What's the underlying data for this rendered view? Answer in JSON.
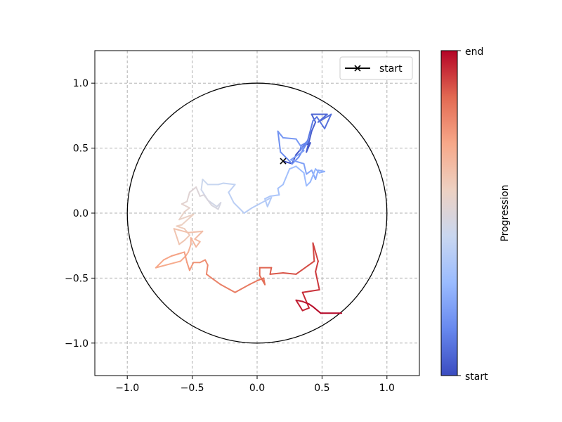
{
  "chart_data": {
    "type": "line",
    "xlim": [
      -1.25,
      1.25
    ],
    "ylim": [
      -1.25,
      1.25
    ],
    "x_ticks": [
      -1.0,
      -0.5,
      0.0,
      0.5,
      1.0
    ],
    "y_ticks": [
      -1.0,
      -0.5,
      0.0,
      0.5,
      1.0
    ],
    "x_tick_labels": [
      "−1.0",
      "−0.5",
      "0.0",
      "0.5",
      "1.0"
    ],
    "y_tick_labels": [
      "−1.0",
      "−0.5",
      "0.0",
      "0.5",
      "1.0"
    ],
    "grid": true,
    "grid_style": "dashed",
    "unit_circle": {
      "center": [
        0,
        0
      ],
      "radius": 1.0
    },
    "legend": {
      "placement": "top-right",
      "entries": [
        "start"
      ]
    },
    "start_marker": {
      "label": "start",
      "x": 0.2,
      "y": 0.4,
      "marker": "x"
    },
    "colormap": "coolwarm",
    "colormap_stops": [
      "#3b4cc0",
      "#6788ee",
      "#9abbff",
      "#c9d7f0",
      "#edd1c2",
      "#f7a889",
      "#e26952",
      "#b40426"
    ],
    "colorbar": {
      "label": "Progression",
      "ticks": [
        "start",
        "end"
      ]
    },
    "path": [
      [
        0.2,
        0.4
      ],
      [
        0.27,
        0.38
      ],
      [
        0.3,
        0.45
      ],
      [
        0.36,
        0.52
      ],
      [
        0.41,
        0.54
      ],
      [
        0.38,
        0.47
      ],
      [
        0.42,
        0.63
      ],
      [
        0.45,
        0.7
      ],
      [
        0.42,
        0.76
      ],
      [
        0.54,
        0.76
      ],
      [
        0.47,
        0.7
      ],
      [
        0.57,
        0.76
      ],
      [
        0.52,
        0.65
      ],
      [
        0.46,
        0.74
      ],
      [
        0.43,
        0.71
      ],
      [
        0.39,
        0.56
      ],
      [
        0.33,
        0.48
      ],
      [
        0.34,
        0.52
      ],
      [
        0.39,
        0.55
      ],
      [
        0.32,
        0.43
      ],
      [
        0.27,
        0.38
      ],
      [
        0.18,
        0.47
      ],
      [
        0.16,
        0.63
      ],
      [
        0.2,
        0.58
      ],
      [
        0.3,
        0.57
      ],
      [
        0.36,
        0.48
      ],
      [
        0.26,
        0.41
      ],
      [
        0.36,
        0.38
      ],
      [
        0.38,
        0.3
      ],
      [
        0.42,
        0.33
      ],
      [
        0.45,
        0.26
      ],
      [
        0.47,
        0.33
      ],
      [
        0.52,
        0.32
      ],
      [
        0.48,
        0.31
      ],
      [
        0.45,
        0.34
      ],
      [
        0.41,
        0.24
      ],
      [
        0.38,
        0.21
      ],
      [
        0.36,
        0.31
      ],
      [
        0.3,
        0.36
      ],
      [
        0.25,
        0.34
      ],
      [
        0.2,
        0.22
      ],
      [
        0.16,
        0.19
      ],
      [
        0.17,
        0.14
      ],
      [
        0.1,
        0.13
      ],
      [
        0.06,
        0.11
      ],
      [
        0.08,
        0.05
      ],
      [
        0.11,
        0.12
      ],
      [
        -0.04,
        0.04
      ],
      [
        -0.1,
        0.0
      ],
      [
        -0.18,
        0.08
      ],
      [
        -0.22,
        0.16
      ],
      [
        -0.17,
        0.22
      ],
      [
        -0.26,
        0.23
      ],
      [
        -0.3,
        0.22
      ],
      [
        -0.38,
        0.22
      ],
      [
        -0.42,
        0.26
      ],
      [
        -0.43,
        0.18
      ],
      [
        -0.38,
        0.1
      ],
      [
        -0.31,
        0.05
      ],
      [
        -0.28,
        0.08
      ],
      [
        -0.3,
        0.03
      ],
      [
        -0.35,
        0.06
      ],
      [
        -0.41,
        0.14
      ],
      [
        -0.44,
        0.13
      ],
      [
        -0.47,
        0.2
      ],
      [
        -0.52,
        0.16
      ],
      [
        -0.54,
        0.09
      ],
      [
        -0.58,
        0.07
      ],
      [
        -0.52,
        0.04
      ],
      [
        -0.56,
        0.01
      ],
      [
        -0.6,
        -0.05
      ],
      [
        -0.49,
        -0.01
      ],
      [
        -0.58,
        -0.09
      ],
      [
        -0.62,
        -0.1
      ],
      [
        -0.56,
        -0.12
      ],
      [
        -0.52,
        -0.17
      ],
      [
        -0.56,
        -0.21
      ],
      [
        -0.6,
        -0.24
      ],
      [
        -0.64,
        -0.12
      ],
      [
        -0.53,
        -0.15
      ],
      [
        -0.42,
        -0.14
      ],
      [
        -0.48,
        -0.2
      ],
      [
        -0.44,
        -0.22
      ],
      [
        -0.47,
        -0.26
      ],
      [
        -0.51,
        -0.19
      ],
      [
        -0.51,
        -0.24
      ],
      [
        -0.53,
        -0.3
      ],
      [
        -0.55,
        -0.33
      ],
      [
        -0.59,
        -0.37
      ],
      [
        -0.78,
        -0.42
      ],
      [
        -0.72,
        -0.36
      ],
      [
        -0.66,
        -0.33
      ],
      [
        -0.56,
        -0.3
      ],
      [
        -0.54,
        -0.38
      ],
      [
        -0.52,
        -0.44
      ],
      [
        -0.49,
        -0.38
      ],
      [
        -0.44,
        -0.38
      ],
      [
        -0.4,
        -0.36
      ],
      [
        -0.38,
        -0.4
      ],
      [
        -0.39,
        -0.47
      ],
      [
        -0.35,
        -0.5
      ],
      [
        -0.28,
        -0.55
      ],
      [
        -0.17,
        -0.61
      ],
      [
        -0.06,
        -0.55
      ],
      [
        0.0,
        -0.52
      ],
      [
        0.05,
        -0.5
      ],
      [
        0.06,
        -0.55
      ],
      [
        0.02,
        -0.48
      ],
      [
        0.02,
        -0.42
      ],
      [
        0.11,
        -0.42
      ],
      [
        0.1,
        -0.47
      ],
      [
        0.2,
        -0.46
      ],
      [
        0.3,
        -0.47
      ],
      [
        0.44,
        -0.37
      ],
      [
        0.43,
        -0.23
      ],
      [
        0.47,
        -0.37
      ],
      [
        0.45,
        -0.45
      ],
      [
        0.48,
        -0.59
      ],
      [
        0.35,
        -0.61
      ],
      [
        0.4,
        -0.73
      ],
      [
        0.35,
        -0.75
      ],
      [
        0.3,
        -0.67
      ],
      [
        0.35,
        -0.68
      ],
      [
        0.4,
        -0.7
      ],
      [
        0.43,
        -0.72
      ],
      [
        0.49,
        -0.77
      ],
      [
        0.65,
        -0.77
      ]
    ]
  }
}
